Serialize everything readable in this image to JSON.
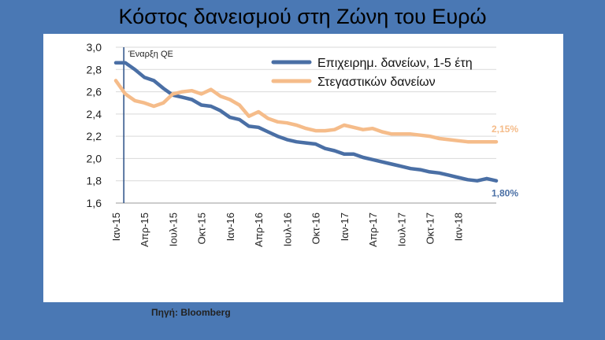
{
  "title": "Κόστος δανεισμού στη Ζώνη του Ευρώ",
  "source": "Πηγή: Bloomberg",
  "chart_data": {
    "type": "line",
    "title": "Κόστος δανεισμού στη Ζώνη του Ευρώ",
    "xlabel": "",
    "ylabel": "",
    "ylim": [
      1.6,
      3.0
    ],
    "yticks": [
      "3,0",
      "2,8",
      "2,6",
      "2,4",
      "2,2",
      "2,0",
      "1,8",
      "1,6"
    ],
    "x_tick_labels": [
      "Ιαν-15",
      "Απρ-15",
      "Ιουλ-15",
      "Οκτ-15",
      "Ιαν-16",
      "Απρ-16",
      "Ιουλ-16",
      "Οκτ-16",
      "Ιαν-17",
      "Απρ-17",
      "Ιουλ-17",
      "Οκτ-17",
      "Ιαν-18"
    ],
    "grid": "horizontal",
    "legend_position": "top-right",
    "annotation": {
      "label": "Έναρξη QE",
      "at_month": 2
    },
    "months": [
      0,
      1,
      2,
      3,
      4,
      5,
      6,
      7,
      8,
      9,
      10,
      11,
      12,
      13,
      14,
      15,
      16,
      17,
      18,
      19,
      20,
      21,
      22,
      23,
      24,
      25,
      26,
      27,
      28,
      29,
      30,
      31,
      32,
      33,
      34,
      35,
      36,
      37,
      38,
      39,
      40
    ],
    "series": [
      {
        "name": "Επιχειρημ. δανείων, 1-5 έτη",
        "color": "#4a6fa5",
        "end_label": "1,80%",
        "values": [
          2.86,
          2.86,
          2.8,
          2.73,
          2.7,
          2.63,
          2.57,
          2.55,
          2.53,
          2.48,
          2.47,
          2.43,
          2.37,
          2.35,
          2.29,
          2.28,
          2.24,
          2.2,
          2.17,
          2.15,
          2.14,
          2.13,
          2.09,
          2.07,
          2.04,
          2.04,
          2.01,
          1.99,
          1.97,
          1.95,
          1.93,
          1.91,
          1.9,
          1.88,
          1.87,
          1.85,
          1.83,
          1.81,
          1.8,
          1.82,
          1.8
        ]
      },
      {
        "name": "Στεγαστικών δανείων",
        "color": "#f5bc8a",
        "end_label": "2,15%",
        "values": [
          2.7,
          2.58,
          2.52,
          2.5,
          2.47,
          2.5,
          2.58,
          2.6,
          2.61,
          2.58,
          2.62,
          2.56,
          2.53,
          2.48,
          2.38,
          2.42,
          2.36,
          2.33,
          2.32,
          2.3,
          2.27,
          2.25,
          2.25,
          2.26,
          2.3,
          2.28,
          2.26,
          2.27,
          2.24,
          2.22,
          2.22,
          2.22,
          2.21,
          2.2,
          2.18,
          2.17,
          2.16,
          2.15,
          2.15,
          2.15,
          2.15
        ]
      }
    ]
  }
}
